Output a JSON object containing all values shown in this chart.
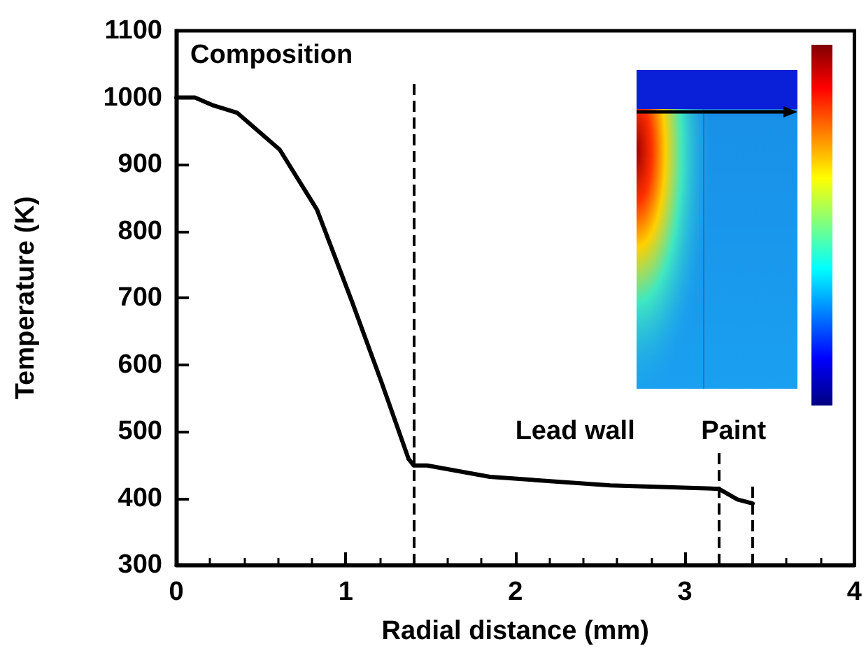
{
  "chart_data": {
    "type": "line",
    "xlabel": "Radial distance (mm)",
    "ylabel": "Temperature (K)",
    "x": [
      0,
      0.11,
      0.22,
      0.36,
      0.61,
      0.83,
      1.04,
      1.21,
      1.37,
      1.4,
      1.48,
      1.85,
      2.56,
      3.2,
      3.31,
      3.4
    ],
    "values": [
      1000,
      1000,
      988,
      977,
      922,
      832,
      692,
      574,
      459,
      449,
      449,
      432,
      419,
      414,
      398,
      392
    ],
    "color": "#000000",
    "xlim": [
      0,
      4
    ],
    "xticks": [
      0,
      1,
      2,
      3,
      4
    ],
    "ylim": [
      300,
      1100
    ],
    "yticks": [
      300,
      400,
      500,
      600,
      700,
      800,
      900,
      1000,
      1100
    ],
    "ref_lines": [
      {
        "axis": "x",
        "value": 1.4,
        "line_style": "dashed"
      },
      {
        "axis": "x",
        "value": 3.2,
        "line_style": "dashed"
      },
      {
        "axis": "x",
        "value": 3.4,
        "line_style": "dashed"
      }
    ],
    "annotations": [
      "Composition",
      "Lead wall",
      "Paint"
    ],
    "grid": false,
    "marker": "none",
    "line_style": "solid"
  }
}
